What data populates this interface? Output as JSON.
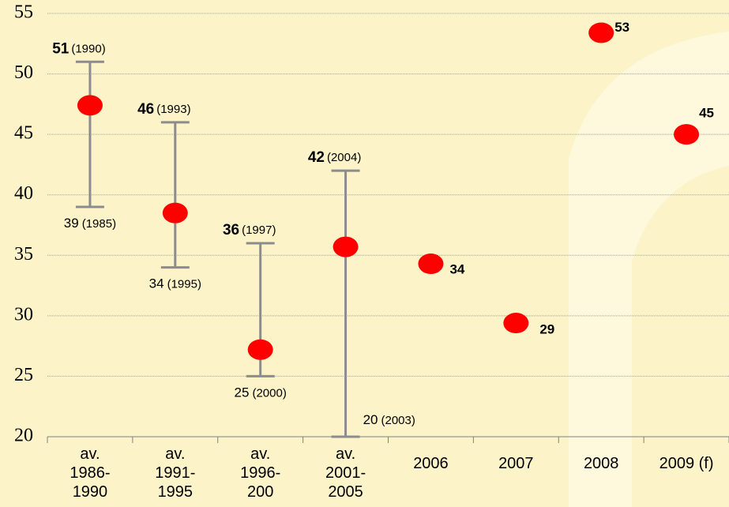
{
  "chart_data": {
    "type": "range_scatter",
    "categories": [
      "av.\n1986-\n1990",
      "av.\n1991-\n1995",
      "av.\n1996-\n200",
      "av.\n2001-\n2005",
      "2006",
      "2007",
      "2008",
      "2009 (f)"
    ],
    "series": [
      {
        "color": "#ff0000",
        "values": [
          47.4,
          38.5,
          27.2,
          35.7,
          34.3,
          29.4,
          53.4,
          45.0
        ],
        "value_labels": [
          null,
          null,
          null,
          null,
          "34",
          "29",
          "53",
          "45"
        ]
      }
    ],
    "ranges": {
      "color": "#8c8c8c",
      "high": [
        51,
        46,
        36,
        42,
        null,
        null,
        null,
        null
      ],
      "high_years": [
        "(1990)",
        "(1993)",
        "(1997)",
        "(2004)",
        null,
        null,
        null,
        null
      ],
      "low": [
        39,
        34,
        25,
        20,
        null,
        null,
        null,
        null
      ],
      "low_years": [
        "(1985)",
        "(1995)",
        "(2000)",
        "(2003)",
        null,
        null,
        null,
        null
      ]
    },
    "ylim": [
      20,
      55
    ],
    "yticks": [
      20,
      25,
      30,
      35,
      40,
      45,
      50,
      55
    ],
    "grid": true
  }
}
